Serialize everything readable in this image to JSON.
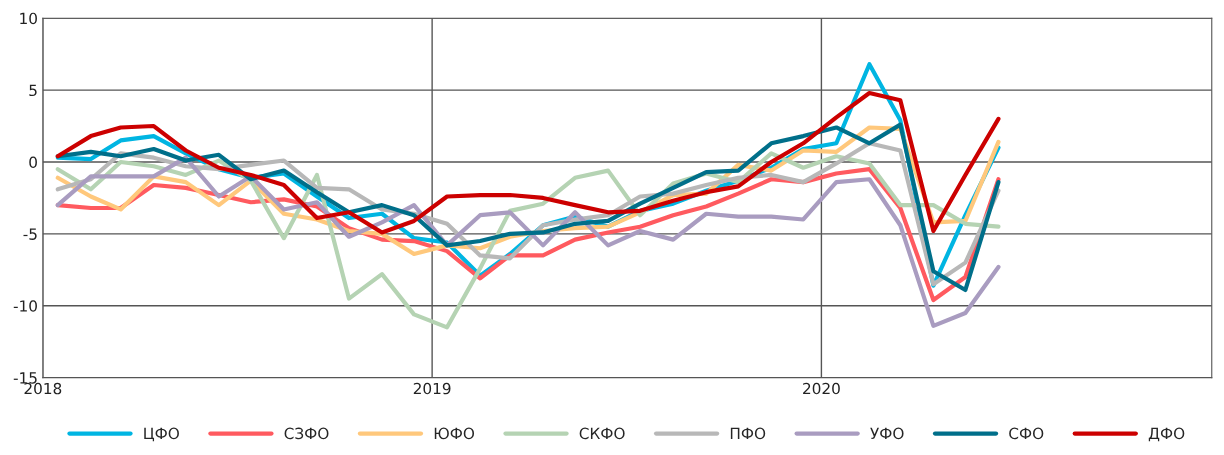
{
  "chart_data": {
    "type": "line",
    "x": [
      "2018-01-15",
      "2018-02-15",
      "2018-03-15",
      "2018-04-15",
      "2018-05-15",
      "2018-06-15",
      "2018-07-15",
      "2018-08-15",
      "2018-09-15",
      "2018-10-15",
      "2018-11-15",
      "2018-12-15",
      "2019-01-15",
      "2019-02-15",
      "2019-03-15",
      "2019-04-15",
      "2019-05-15",
      "2019-06-15",
      "2019-07-15",
      "2019-08-15",
      "2019-09-15",
      "2019-10-15",
      "2019-11-15",
      "2019-12-15",
      "2020-01-15",
      "2020-02-15",
      "2020-03-15",
      "2020-04-15",
      "2020-05-15",
      "2020-06-15"
    ],
    "series": [
      {
        "name": "ЦФО",
        "color": "#00b5e2",
        "values": [
          0.3,
          0.2,
          1.5,
          1.8,
          0.6,
          -0.5,
          -1.1,
          -0.8,
          -2.4,
          -3.9,
          -3.6,
          -5.3,
          -5.6,
          -7.9,
          -6.4,
          -4.4,
          -3.8,
          -4.5,
          -3.4,
          -2.9,
          -2.0,
          -1.3,
          -0.4,
          0.9,
          1.3,
          6.8,
          2.9,
          -8.6,
          -3.7,
          1.0
        ]
      },
      {
        "name": "СЗФО",
        "color": "#ff5a5f",
        "values": [
          -3.0,
          -3.2,
          -3.2,
          -1.6,
          -1.8,
          -2.3,
          -2.8,
          -2.6,
          -3.1,
          -4.6,
          -5.4,
          -5.5,
          -6.2,
          -8.1,
          -6.5,
          -6.5,
          -5.4,
          -4.9,
          -4.5,
          -3.7,
          -3.1,
          -2.2,
          -1.2,
          -1.4,
          -0.8,
          -0.5,
          -3.2,
          -9.6,
          -8.0,
          -1.2
        ]
      },
      {
        "name": "ЮФО",
        "color": "#ffc87c",
        "values": [
          -1.1,
          -2.4,
          -3.3,
          -1.0,
          -1.4,
          -3.0,
          -1.3,
          -3.6,
          -4.0,
          -4.8,
          -5.0,
          -6.4,
          -5.8,
          -6.0,
          -5.2,
          -4.8,
          -4.6,
          -4.5,
          -3.5,
          -2.3,
          -2.2,
          -0.2,
          -0.6,
          0.8,
          0.7,
          2.4,
          2.3,
          -4.2,
          -4.1,
          1.4
        ]
      },
      {
        "name": "СКФО",
        "color": "#b5d3b3",
        "values": [
          -0.5,
          -1.9,
          0.0,
          -0.3,
          -0.9,
          0.1,
          -1.3,
          -5.3,
          -0.9,
          -9.5,
          -7.8,
          -10.6,
          -11.5,
          -7.4,
          -3.4,
          -2.9,
          -1.1,
          -0.6,
          -3.7,
          -1.5,
          -0.8,
          -1.4,
          0.6,
          -0.4,
          0.4,
          -0.1,
          -3.0,
          -3.0,
          -4.3,
          -4.5
        ]
      },
      {
        "name": "ПФО",
        "color": "#b8b8b8",
        "values": [
          -1.9,
          -1.2,
          0.6,
          0.3,
          -0.3,
          -0.5,
          -0.2,
          0.1,
          -1.8,
          -1.9,
          -3.3,
          -3.6,
          -4.3,
          -6.5,
          -6.7,
          -4.4,
          -4.0,
          -3.7,
          -2.4,
          -2.2,
          -1.6,
          -1.1,
          -0.9,
          -1.4,
          -0.1,
          1.3,
          0.8,
          -8.5,
          -7.0,
          -2.0
        ]
      },
      {
        "name": "УФО",
        "color": "#a99cc0",
        "values": [
          -3.0,
          -1.0,
          -1.0,
          -1.0,
          0.3,
          -2.4,
          -1.0,
          -3.3,
          -2.8,
          -5.2,
          -4.2,
          -3.0,
          -5.8,
          -3.7,
          -3.5,
          -5.8,
          -3.5,
          -5.8,
          -4.8,
          -5.4,
          -3.6,
          -3.8,
          -3.8,
          -4.0,
          -1.4,
          -1.2,
          -4.4,
          -11.4,
          -10.5,
          -7.3
        ]
      },
      {
        "name": "СФО",
        "color": "#006f8a",
        "values": [
          0.4,
          0.7,
          0.4,
          0.9,
          0.1,
          0.5,
          -1.2,
          -0.6,
          -2.1,
          -3.5,
          -3.0,
          -3.7,
          -5.8,
          -5.5,
          -5.0,
          -4.9,
          -4.3,
          -4.1,
          -2.9,
          -1.8,
          -0.7,
          -0.6,
          1.3,
          1.8,
          2.4,
          1.3,
          2.6,
          -7.6,
          -8.9,
          -1.4
        ]
      },
      {
        "name": "ДФО",
        "color": "#cc0000",
        "values": [
          0.4,
          1.8,
          2.4,
          2.5,
          0.8,
          -0.4,
          -0.9,
          -1.6,
          -3.9,
          -3.5,
          -4.9,
          -4.1,
          -2.4,
          -2.3,
          -2.3,
          -2.5,
          -3.0,
          -3.5,
          -3.4,
          -2.7,
          -2.1,
          -1.7,
          0.0,
          1.3,
          3.1,
          4.8,
          4.3,
          -4.8,
          -0.9,
          3.0
        ]
      }
    ],
    "xlim": [
      "2018",
      "2021"
    ],
    "xticks": [
      "2018",
      "2019",
      "2020"
    ],
    "ylim": [
      -15,
      10
    ],
    "yticks": [
      -15,
      -10,
      -5,
      0,
      5,
      10
    ],
    "grid": true,
    "legend": "bottom",
    "marker": "none",
    "line_style": "solid"
  }
}
